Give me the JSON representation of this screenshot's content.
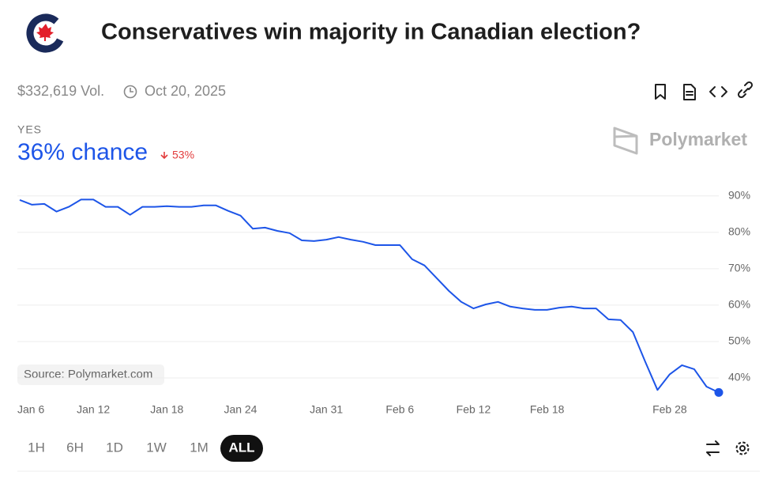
{
  "header": {
    "title": "Conservatives win majority in Canadian election?",
    "volume": "$332,619 Vol.",
    "date": "Oct 20, 2025"
  },
  "outcome": {
    "label": "YES",
    "chance": "36% chance",
    "change": "53%"
  },
  "brand": "Polymarket",
  "chart_data": {
    "type": "line",
    "source": "Source: Polymarket.com",
    "color": "#1d55e8",
    "x": [
      "Jan 6",
      "Jan 7",
      "Jan 8",
      "Jan 9",
      "Jan 10",
      "Jan 11",
      "Jan 12",
      "Jan 13",
      "Jan 14",
      "Jan 15",
      "Jan 16",
      "Jan 17",
      "Jan 18",
      "Jan 19",
      "Jan 20",
      "Jan 21",
      "Jan 22",
      "Jan 23",
      "Jan 24",
      "Jan 25",
      "Jan 26",
      "Jan 27",
      "Jan 28",
      "Jan 29",
      "Jan 30",
      "Jan 31",
      "Feb 1",
      "Feb 2",
      "Feb 3",
      "Feb 4",
      "Feb 5",
      "Feb 6",
      "Feb 7",
      "Feb 8",
      "Feb 9",
      "Feb 10",
      "Feb 11",
      "Feb 12",
      "Feb 13",
      "Feb 14",
      "Feb 15",
      "Feb 16",
      "Feb 17",
      "Feb 18",
      "Feb 19",
      "Feb 20",
      "Feb 21",
      "Feb 22",
      "Feb 23",
      "Feb 24",
      "Feb 25",
      "Feb 26",
      "Feb 27",
      "Feb 28",
      "Mar 1",
      "Mar 2",
      "Mar 3",
      "Mar 4"
    ],
    "values": [
      88.9,
      87.6,
      87.8,
      85.7,
      87,
      89,
      89,
      87,
      87,
      84.8,
      87,
      87,
      87.2,
      87,
      87,
      87.4,
      87.4,
      85.9,
      84.6,
      81,
      81.3,
      80.4,
      79.8,
      77.8,
      77.6,
      78,
      78.7,
      78,
      77.4,
      76.5,
      76.5,
      76.5,
      72.6,
      70.9,
      67.4,
      63.9,
      60.9,
      59.1,
      60.2,
      60.9,
      59.6,
      59.1,
      58.7,
      58.7,
      59.3,
      59.6,
      59.1,
      59.1,
      56.1,
      55.9,
      52.6,
      44.5,
      36.7,
      41,
      43.5,
      42.4,
      37.6,
      36
    ],
    "ylim": [
      35,
      93
    ],
    "yticks": [
      {
        "value": 40,
        "label": "40%"
      },
      {
        "value": 50,
        "label": "50%"
      },
      {
        "value": 60,
        "label": "60%"
      },
      {
        "value": 70,
        "label": "70%"
      },
      {
        "value": 80,
        "label": "80%"
      },
      {
        "value": 90,
        "label": "90%"
      }
    ],
    "xticks": [
      "Jan 6",
      "Jan 12",
      "Jan 18",
      "Jan 24",
      "Jan 31",
      "Feb 6",
      "Feb 12",
      "Feb 18",
      "Feb 28"
    ],
    "grid": true
  },
  "ranges": [
    "1H",
    "6H",
    "1D",
    "1W",
    "1M",
    "ALL"
  ],
  "selected_range": "ALL"
}
